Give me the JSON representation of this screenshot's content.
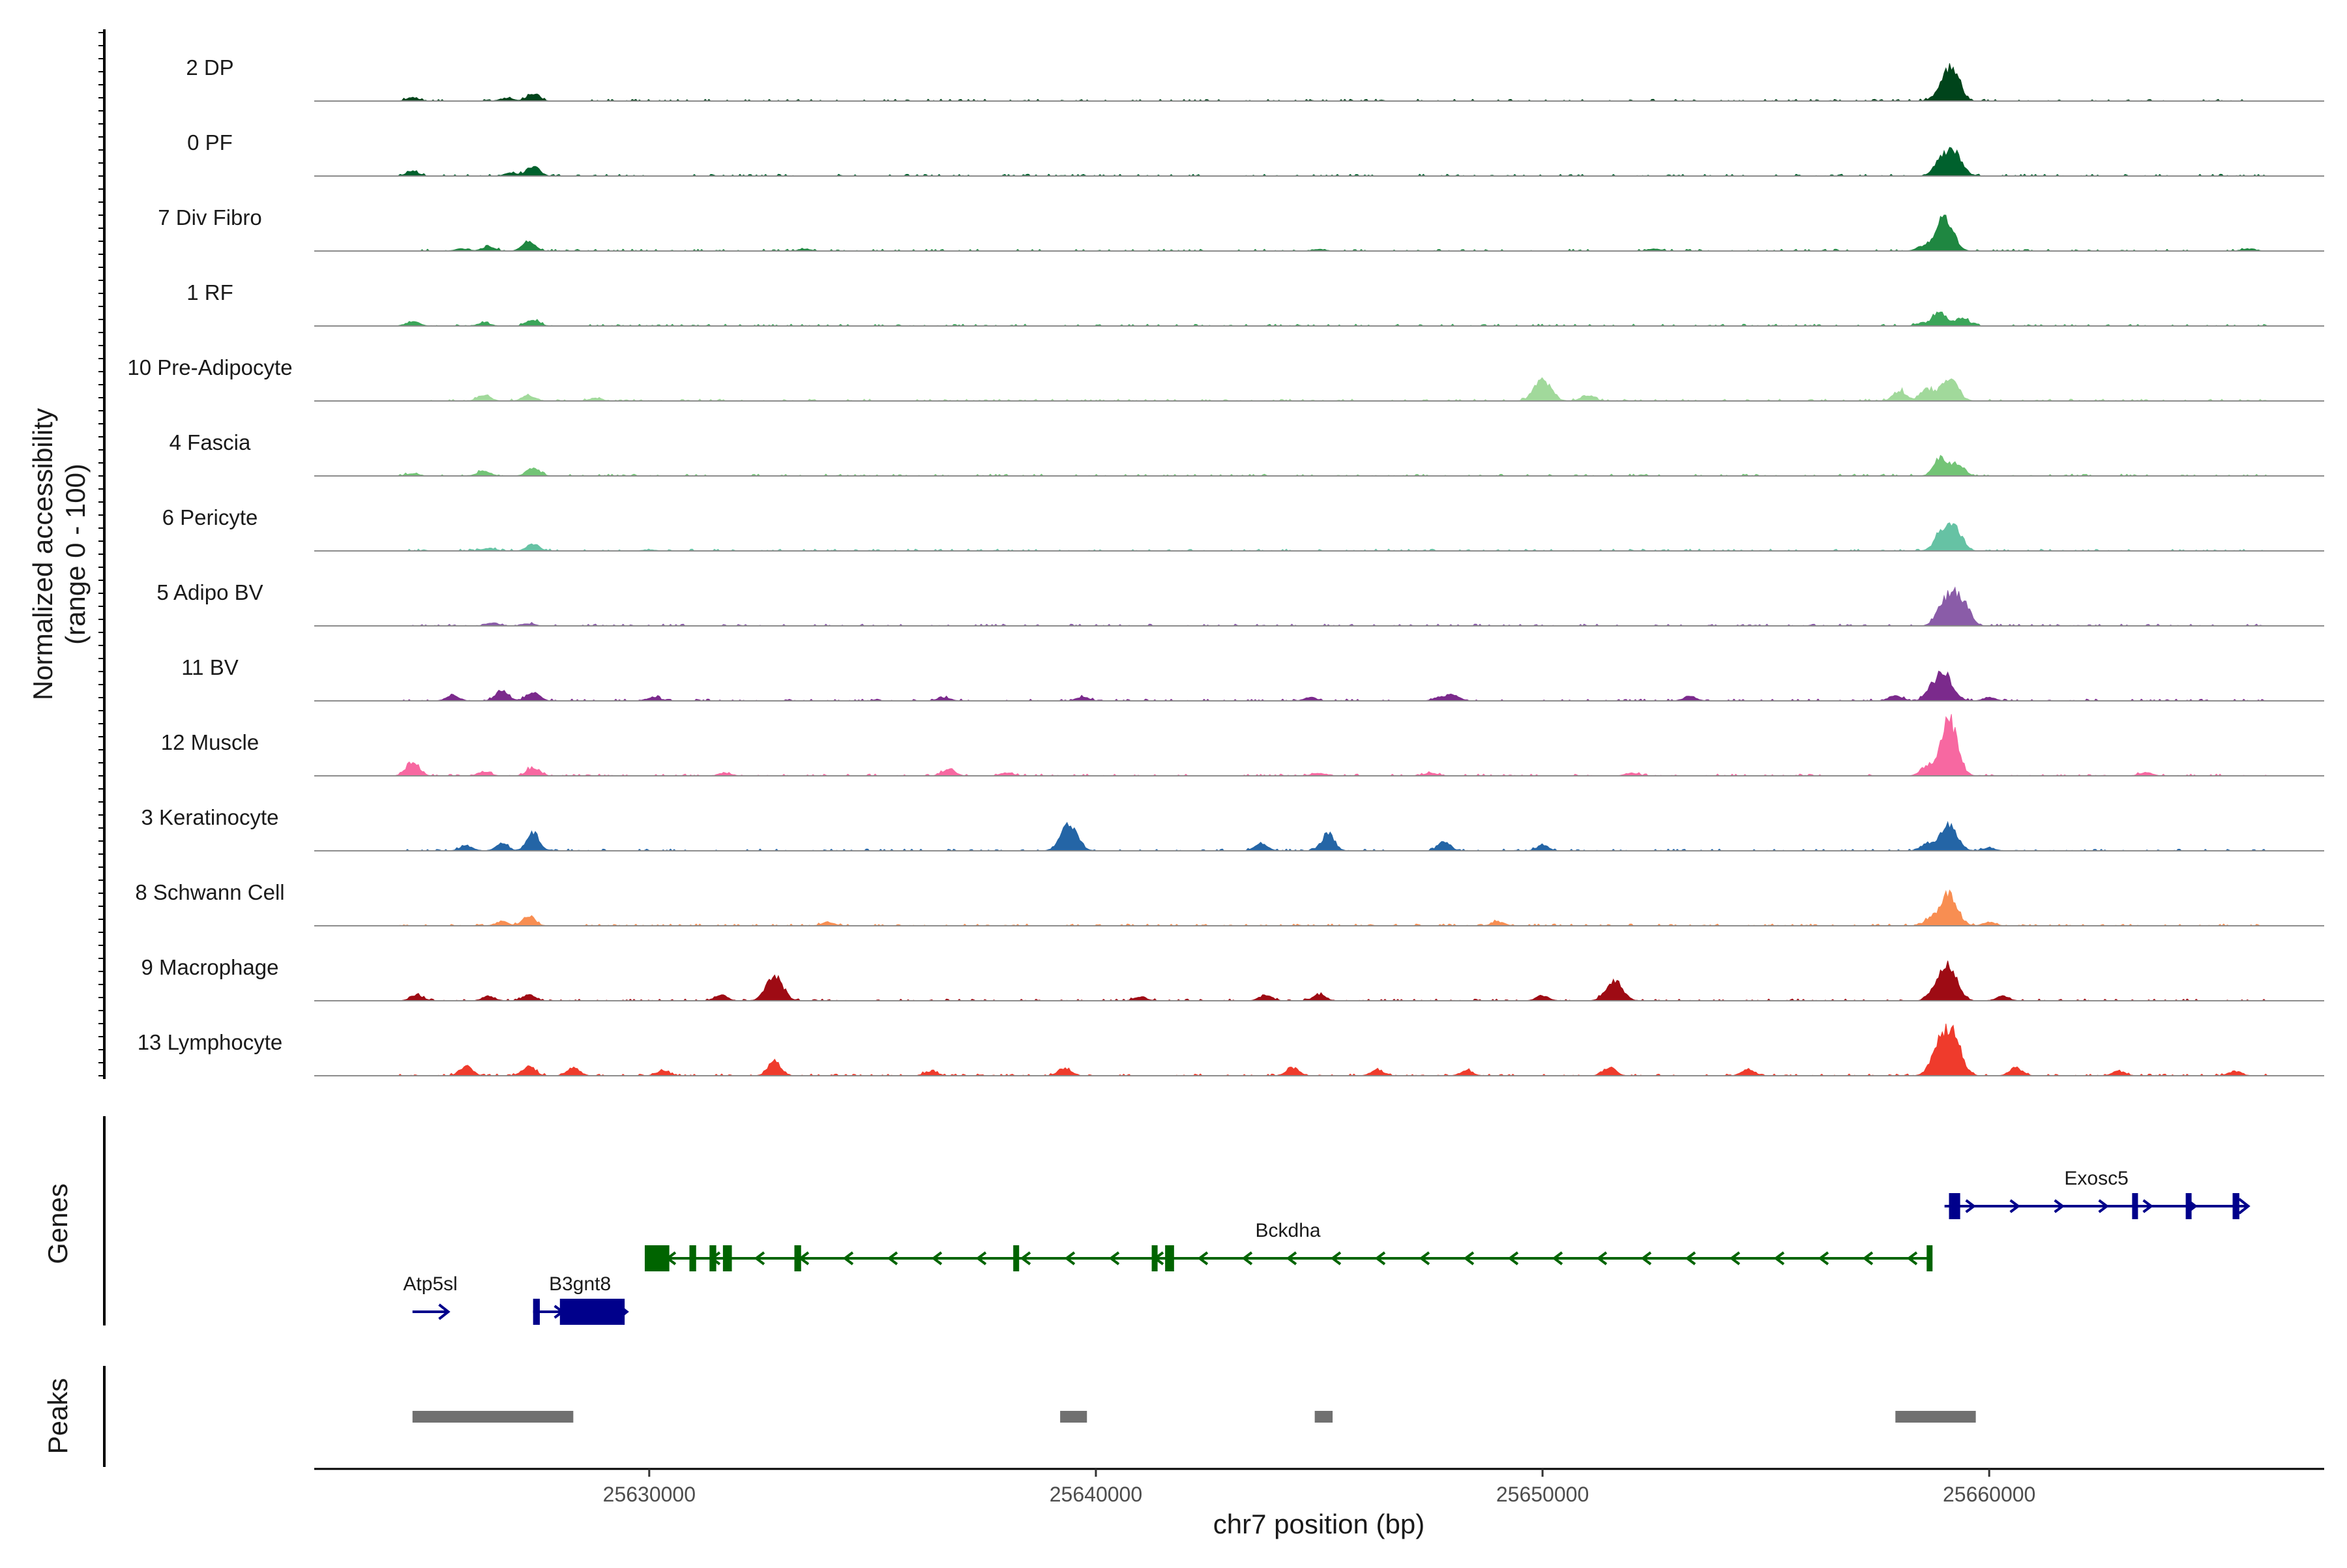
{
  "chart_data": {
    "type": "area",
    "title": "",
    "ylabel": "Normalized accessibility",
    "ylabel_sub": "(range 0 - 100)",
    "xlabel": "chr7 position (bp)",
    "chromosome": "chr7",
    "xlim": [
      25622500,
      25667500
    ],
    "ylim": [
      0,
      100
    ],
    "x_ticks": [
      25630000,
      25640000,
      25650000,
      25660000
    ],
    "x_tick_labels": [
      "25630000",
      "25640000",
      "25650000",
      "25660000"
    ],
    "panel_titles": {
      "genes": "Genes",
      "peaks": "Peaks"
    },
    "tracks": [
      {
        "name": "2 DP",
        "color": "#00441b",
        "peaks": [
          [
            25624700,
            5
          ],
          [
            25626800,
            5
          ],
          [
            25627400,
            13
          ],
          [
            25659050,
            42
          ],
          [
            25659250,
            28
          ]
        ]
      },
      {
        "name": "0 PF",
        "color": "#00612d",
        "peaks": [
          [
            25624700,
            8
          ],
          [
            25626900,
            5
          ],
          [
            25627400,
            17
          ],
          [
            25659000,
            38
          ],
          [
            25659300,
            27
          ]
        ]
      },
      {
        "name": "7 Div Fibro",
        "color": "#1f8741",
        "peaks": [
          [
            25625800,
            4
          ],
          [
            25626400,
            7
          ],
          [
            25627300,
            16
          ],
          [
            25633500,
            3
          ],
          [
            25645000,
            3
          ],
          [
            25652500,
            4
          ],
          [
            25658500,
            7
          ],
          [
            25659000,
            61
          ],
          [
            25665800,
            4
          ]
        ]
      },
      {
        "name": "1 RF",
        "color": "#3ba559",
        "peaks": [
          [
            25624700,
            8
          ],
          [
            25626300,
            5
          ],
          [
            25627400,
            11
          ],
          [
            25658500,
            5
          ],
          [
            25658900,
            25
          ],
          [
            25659400,
            15
          ]
        ]
      },
      {
        "name": "10 Pre-Adipocyte",
        "color": "#a1d99b",
        "peaks": [
          [
            25626300,
            11
          ],
          [
            25627300,
            9
          ],
          [
            25628800,
            5
          ],
          [
            25650000,
            37
          ],
          [
            25651000,
            10
          ],
          [
            25658000,
            18
          ],
          [
            25658600,
            20
          ],
          [
            25659100,
            40
          ]
        ]
      },
      {
        "name": "4 Fascia",
        "color": "#73c476",
        "peaks": [
          [
            25624700,
            4
          ],
          [
            25626300,
            9
          ],
          [
            25627400,
            13
          ],
          [
            25658900,
            30
          ],
          [
            25659300,
            22
          ]
        ]
      },
      {
        "name": "6 Pericyte",
        "color": "#66c2a4",
        "peaks": [
          [
            25626400,
            5
          ],
          [
            25627400,
            12
          ],
          [
            25630000,
            2
          ],
          [
            25659000,
            38
          ],
          [
            25659300,
            25
          ]
        ]
      },
      {
        "name": "5 Adipo BV",
        "color": "#8a5ca8",
        "peaks": [
          [
            25626500,
            5
          ],
          [
            25627300,
            4
          ],
          [
            25658900,
            20
          ],
          [
            25659200,
            54
          ],
          [
            25659500,
            20
          ]
        ]
      },
      {
        "name": "11 BV",
        "color": "#7b2a8c",
        "peaks": [
          [
            25625600,
            10
          ],
          [
            25626700,
            19
          ],
          [
            25627400,
            16
          ],
          [
            25630100,
            7
          ],
          [
            25636600,
            6
          ],
          [
            25639700,
            7
          ],
          [
            25644800,
            6
          ],
          [
            25647700,
            7
          ],
          [
            25648000,
            9
          ],
          [
            25653300,
            8
          ],
          [
            25657900,
            10
          ],
          [
            25658700,
            15
          ],
          [
            25659000,
            47
          ],
          [
            25660000,
            6
          ]
        ]
      },
      {
        "name": "12 Muscle",
        "color": "#f768a1",
        "peaks": [
          [
            25624700,
            25
          ],
          [
            25626300,
            7
          ],
          [
            25627400,
            14
          ],
          [
            25631700,
            5
          ],
          [
            25636700,
            11
          ],
          [
            25638000,
            5
          ],
          [
            25645000,
            5
          ],
          [
            25647500,
            5
          ],
          [
            25652000,
            5
          ],
          [
            25658600,
            16
          ],
          [
            25659100,
            95
          ],
          [
            25663500,
            6
          ]
        ]
      },
      {
        "name": "3 Keratinocyte",
        "color": "#2465a6",
        "peaks": [
          [
            25625900,
            9
          ],
          [
            25626700,
            12
          ],
          [
            25627400,
            29
          ],
          [
            25639400,
            45
          ],
          [
            25643700,
            12
          ],
          [
            25645200,
            30
          ],
          [
            25647800,
            15
          ],
          [
            25650000,
            9
          ],
          [
            25658600,
            11
          ],
          [
            25659100,
            45
          ],
          [
            25660000,
            5
          ]
        ]
      },
      {
        "name": "8 Schwann Cell",
        "color": "#f88e52",
        "peaks": [
          [
            25626700,
            7
          ],
          [
            25627300,
            17
          ],
          [
            25634000,
            6
          ],
          [
            25649000,
            7
          ],
          [
            25658700,
            11
          ],
          [
            25659100,
            56
          ],
          [
            25660000,
            6
          ]
        ]
      },
      {
        "name": "9 Macrophage",
        "color": "#9e0b14",
        "peaks": [
          [
            25624800,
            10
          ],
          [
            25626400,
            8
          ],
          [
            25627300,
            10
          ],
          [
            25631600,
            10
          ],
          [
            25632800,
            43
          ],
          [
            25641000,
            7
          ],
          [
            25643800,
            9
          ],
          [
            25645000,
            11
          ],
          [
            25650000,
            9
          ],
          [
            25651600,
            34
          ],
          [
            25658800,
            20
          ],
          [
            25659100,
            63
          ],
          [
            25660300,
            8
          ]
        ]
      },
      {
        "name": "13 Lymphocyte",
        "color": "#ef3b2c",
        "peaks": [
          [
            25625900,
            17
          ],
          [
            25627300,
            17
          ],
          [
            25628300,
            14
          ],
          [
            25630300,
            9
          ],
          [
            25632800,
            26
          ],
          [
            25636300,
            8
          ],
          [
            25639300,
            14
          ],
          [
            25644400,
            14
          ],
          [
            25646300,
            11
          ],
          [
            25648300,
            9
          ],
          [
            25651500,
            14
          ],
          [
            25654600,
            11
          ],
          [
            25658900,
            55
          ],
          [
            25659200,
            60
          ],
          [
            25660600,
            14
          ],
          [
            25662900,
            8
          ],
          [
            25665500,
            8
          ]
        ]
      }
    ],
    "genes": [
      {
        "name": "Atp5sl",
        "color": "#00008b",
        "strand": "+",
        "start": 25624700,
        "end": 25625500,
        "row": 2,
        "exons": []
      },
      {
        "name": "B3gnt8",
        "color": "#00008b",
        "strand": "+",
        "start": 25627400,
        "end": 25629500,
        "row": 2,
        "exons": [
          [
            25627400,
            25627550
          ],
          [
            25628000,
            25629450
          ]
        ]
      },
      {
        "name": "Bckdha",
        "color": "#006400",
        "strand": "-",
        "start": 25629900,
        "end": 25658700,
        "row": 1,
        "exons": [
          [
            25629900,
            25630450
          ],
          [
            25630900,
            25631050
          ],
          [
            25631350,
            25631500
          ],
          [
            25631650,
            25631850
          ],
          [
            25633250,
            25633400
          ],
          [
            25638150,
            25638250
          ],
          [
            25641250,
            25641350
          ],
          [
            25641550,
            25641750
          ],
          [
            25658600,
            25658700
          ]
        ]
      },
      {
        "name": "Exosc5",
        "color": "#00008b",
        "strand": "+",
        "start": 25659000,
        "end": 25665800,
        "row": 0,
        "exons": [
          [
            25659100,
            25659350
          ],
          [
            25663200,
            25663300
          ],
          [
            25664400,
            25664500
          ],
          [
            25665450,
            25665600
          ]
        ]
      }
    ],
    "peak_regions": [
      {
        "start": 25624700,
        "end": 25628300
      },
      {
        "start": 25639200,
        "end": 25639800
      },
      {
        "start": 25644900,
        "end": 25645300
      },
      {
        "start": 25657900,
        "end": 25659700
      }
    ]
  }
}
